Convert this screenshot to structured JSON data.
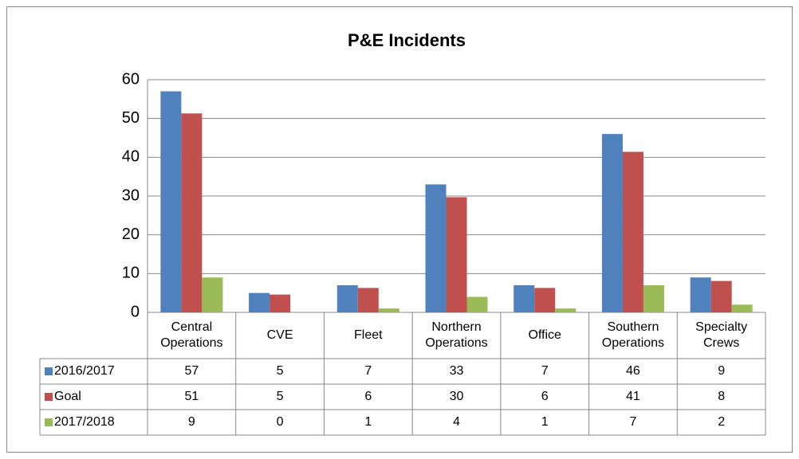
{
  "chart_data": {
    "type": "bar",
    "title": "P&E Incidents",
    "categories": [
      "Central Operations",
      "CVE",
      "Fleet",
      "Northern Operations",
      "Office",
      "Southern Operations",
      "Specialty Crews"
    ],
    "series": [
      {
        "name": "2016/2017",
        "color": "#4f81bd",
        "values": [
          57,
          5,
          7,
          33,
          7,
          46,
          9
        ]
      },
      {
        "name": "Goal",
        "color": "#c0504d",
        "values": [
          51.3,
          4.6,
          6.3,
          29.7,
          6.3,
          41.4,
          8.1
        ],
        "value_labels": [
          "51",
          "5",
          "6",
          "30",
          "6",
          "41",
          "8"
        ]
      },
      {
        "name": "2017/2018",
        "color": "#9bbb59",
        "values": [
          9,
          0,
          1,
          4,
          1,
          7,
          2
        ]
      }
    ],
    "ylim": [
      0,
      60
    ],
    "yticks": [
      0,
      10,
      20,
      30,
      40,
      50,
      60
    ],
    "grid": true,
    "data_table": true
  }
}
